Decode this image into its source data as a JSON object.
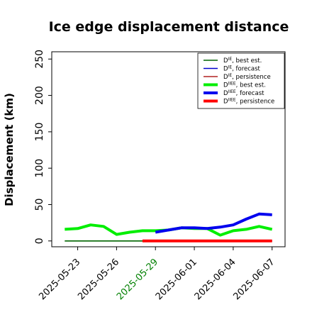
{
  "chart_data": {
    "type": "line",
    "title": "Ice edge displacement distance",
    "ylabel": "Displacement (km)",
    "xlabel": "",
    "ylim": [
      -8,
      260
    ],
    "xlim": [
      "2025-05-21",
      "2025-06-08"
    ],
    "yticks": [
      0,
      50,
      100,
      150,
      200,
      250
    ],
    "xticks": [
      {
        "label": "2025-05-23",
        "date": "2025-05-23",
        "color": "#000000"
      },
      {
        "label": "2025-05-26",
        "date": "2025-05-26",
        "color": "#000000"
      },
      {
        "label": "2025-05-29",
        "date": "2025-05-29",
        "color": "#008000"
      },
      {
        "label": "2025-06-01",
        "date": "2025-06-01",
        "color": "#000000"
      },
      {
        "label": "2025-06-04",
        "date": "2025-06-04",
        "color": "#000000"
      },
      {
        "label": "2025-06-07",
        "date": "2025-06-07",
        "color": "#000000"
      }
    ],
    "grid": false,
    "legend_position": "top-right",
    "series": [
      {
        "name": "best est.",
        "sym": "D",
        "sup": "IE",
        "color": "#006400",
        "width": 1.6,
        "x": [
          "2025-05-22",
          "2025-05-23",
          "2025-05-24",
          "2025-05-25",
          "2025-05-26",
          "2025-05-27",
          "2025-05-28",
          "2025-05-29"
        ],
        "y": [
          0,
          0,
          0,
          0,
          0,
          0,
          0,
          0
        ]
      },
      {
        "name": "forecast",
        "sym": "D",
        "sup": "IE",
        "color": "#0000cd",
        "width": 1.6,
        "x": [
          "2025-05-29",
          "2025-05-30",
          "2025-05-31",
          "2025-06-01",
          "2025-06-02",
          "2025-06-03",
          "2025-06-04",
          "2025-06-05",
          "2025-06-06",
          "2025-06-07"
        ],
        "y": [
          0,
          0,
          0,
          0,
          0,
          0,
          0,
          0,
          0,
          0
        ]
      },
      {
        "name": "persistence",
        "sym": "D",
        "sup": "IE",
        "color": "#b22222",
        "width": 1.6,
        "x": [
          "2025-05-28",
          "2025-05-29",
          "2025-05-30",
          "2025-05-31",
          "2025-06-01",
          "2025-06-02",
          "2025-06-03",
          "2025-06-04",
          "2025-06-05",
          "2025-06-06",
          "2025-06-07"
        ],
        "y": [
          0,
          0,
          0,
          0,
          0,
          0,
          0,
          0,
          0,
          0,
          0
        ]
      },
      {
        "name": "best est.",
        "sym": "D",
        "sup": "IIEE",
        "color": "#00ee00",
        "width": 4,
        "x": [
          "2025-05-22",
          "2025-05-23",
          "2025-05-24",
          "2025-05-25",
          "2025-05-26",
          "2025-05-27",
          "2025-05-28",
          "2025-05-29",
          "2025-05-30",
          "2025-05-31",
          "2025-06-01",
          "2025-06-02",
          "2025-06-03",
          "2025-06-04",
          "2025-06-05",
          "2025-06-06",
          "2025-06-07"
        ],
        "y": [
          16,
          17,
          22,
          20,
          9,
          12,
          14,
          14,
          15,
          18,
          17,
          17,
          8,
          14,
          16,
          20,
          16
        ]
      },
      {
        "name": "forecast",
        "sym": "D",
        "sup": "IIEE",
        "color": "#0000ee",
        "width": 4,
        "x": [
          "2025-05-29",
          "2025-05-30",
          "2025-05-31",
          "2025-06-01",
          "2025-06-02",
          "2025-06-03",
          "2025-06-04",
          "2025-06-05",
          "2025-06-06",
          "2025-06-07"
        ],
        "y": [
          12,
          15,
          18,
          18,
          17,
          19,
          22,
          30,
          37,
          36
        ]
      },
      {
        "name": "persistence",
        "sym": "D",
        "sup": "IIEE",
        "color": "#ff0000",
        "width": 4,
        "x": [
          "2025-05-28",
          "2025-05-29",
          "2025-05-30",
          "2025-05-31",
          "2025-06-01",
          "2025-06-02",
          "2025-06-03",
          "2025-06-04",
          "2025-06-05",
          "2025-06-06",
          "2025-06-07"
        ],
        "y": [
          0,
          0,
          0,
          0,
          0,
          0,
          0,
          0,
          0,
          0,
          0
        ]
      }
    ]
  }
}
